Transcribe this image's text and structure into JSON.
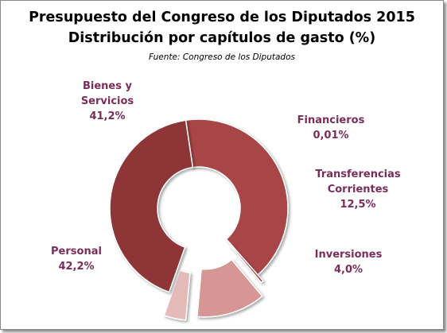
{
  "title_line1": "Presupuesto  del Congreso de los Diputados  2015",
  "title_line2": "Distribución  por capítulos  de gasto (%)",
  "source": "Fuente:  Congreso de los Diputados",
  "label_color": "#7b2d5a",
  "chart_data": {
    "type": "pie",
    "subtype": "donut",
    "title": "Presupuesto del Congreso de los Diputados 2015 — Distribución por capítulos de gasto (%)",
    "slices": [
      {
        "label_lines": [
          "Bienes y",
          "Servicios"
        ],
        "value_text": "41,2%",
        "value": 41.2,
        "color": "#a84446"
      },
      {
        "label_lines": [
          "Financieros"
        ],
        "value_text": "0,01%",
        "value": 0.01,
        "color": "#a84446"
      },
      {
        "label_lines": [
          "Transferencias",
          "Corrientes"
        ],
        "value_text": "12,5%",
        "value": 12.5,
        "color": "#d69694"
      },
      {
        "label_lines": [
          "Inversiones"
        ],
        "value_text": "4,0%",
        "value": 4.0,
        "color": "#e5bbb9"
      },
      {
        "label_lines": [
          "Personal"
        ],
        "value_text": "42,2%",
        "value": 42.2,
        "color": "#8e3638"
      }
    ]
  }
}
